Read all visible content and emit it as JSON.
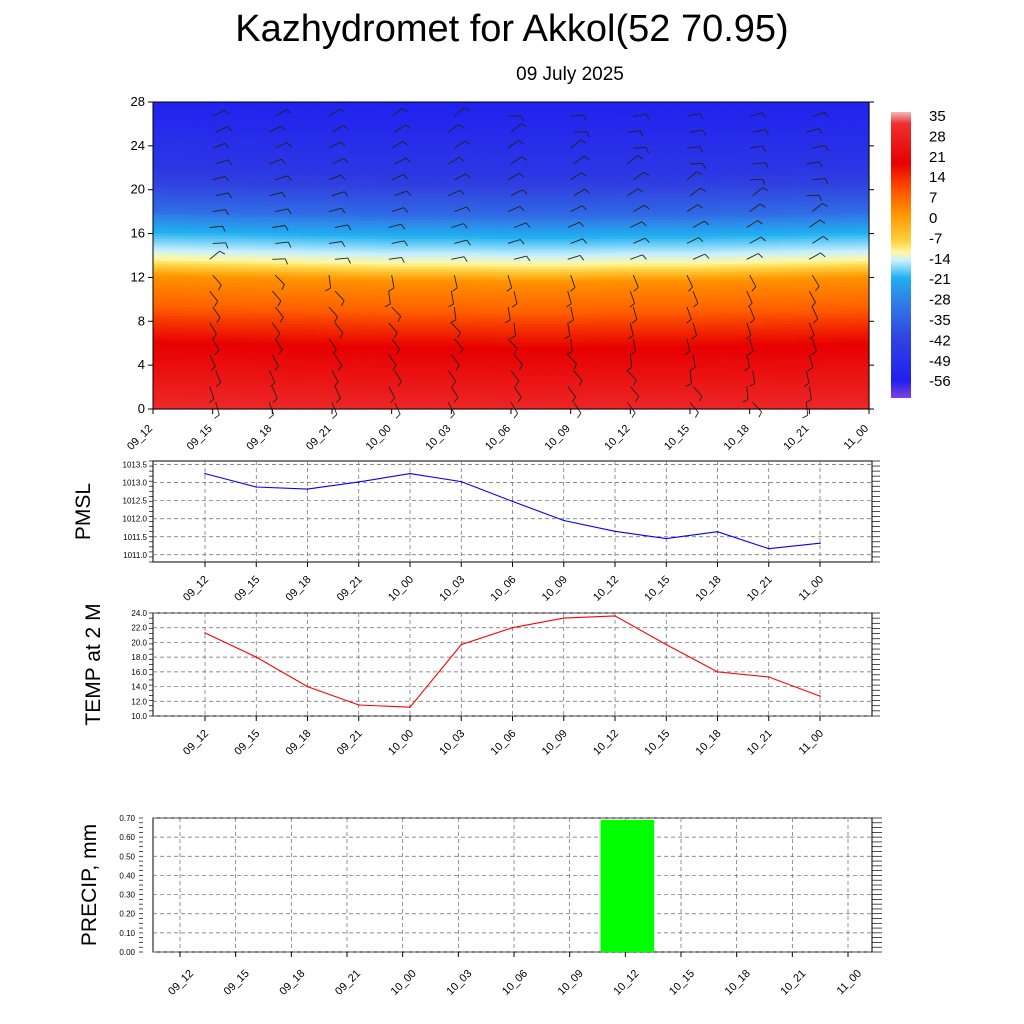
{
  "title": "Kazhydromet for Akkol(52 70.95)",
  "subtitle": "09 July 2025",
  "time_labels": [
    "09_12",
    "09_15",
    "09_18",
    "09_21",
    "10_00",
    "10_03",
    "10_06",
    "10_09",
    "10_12",
    "10_15",
    "10_18",
    "10_21",
    "11_00"
  ],
  "chart_data": [
    {
      "type": "heatmap",
      "title": "",
      "xlabel": "",
      "ylabel": "",
      "x": [
        "09_12",
        "09_15",
        "09_18",
        "09_21",
        "10_00",
        "10_03",
        "10_06",
        "10_09",
        "10_12",
        "10_15",
        "10_18",
        "10_21",
        "11_00"
      ],
      "y_ticks": [
        0,
        4,
        8,
        12,
        16,
        20,
        24,
        28
      ],
      "ylim": [
        0,
        28
      ],
      "colorbar_levels": [
        35,
        28,
        21,
        14,
        7,
        0,
        -7,
        -14,
        -21,
        -28,
        -35,
        -42,
        -49,
        -56
      ],
      "colorbar_range": [
        -60,
        38
      ],
      "freezing_level": [
        13.0,
        12.9,
        12.8,
        12.7,
        12.6,
        12.6,
        12.5,
        12.5,
        12.6,
        12.6,
        12.7,
        12.8,
        12.9
      ],
      "temperature_profile": [
        {
          "level": 0,
          "temp": 26
        },
        {
          "level": 4,
          "temp": 18
        },
        {
          "level": 8,
          "temp": 10
        },
        {
          "level": 12,
          "temp": 1
        },
        {
          "level": 14,
          "temp": -12
        },
        {
          "level": 16,
          "temp": -24
        },
        {
          "level": 18,
          "temp": -38
        },
        {
          "level": 22,
          "temp": -48
        },
        {
          "level": 28,
          "temp": -55
        }
      ],
      "wind_barbs": "wind barbs at each time step and height level"
    },
    {
      "type": "line",
      "ylabel": "PMSL",
      "x": [
        "09_12",
        "09_15",
        "09_18",
        "09_21",
        "10_00",
        "10_03",
        "10_06",
        "10_09",
        "10_12",
        "10_15",
        "10_18",
        "10_21",
        "11_00"
      ],
      "series": [
        {
          "values": [
            1013.25,
            1012.88,
            1012.82,
            1013.02,
            1013.25,
            1013.03,
            1012.48,
            1011.95,
            1011.65,
            1011.45,
            1011.64,
            1011.17,
            1011.32
          ]
        }
      ],
      "ylim": [
        1010.8,
        1013.6
      ],
      "yticks": [
        "1011.0",
        "1011.5",
        "1012.0",
        "1012.5",
        "1013.0",
        "1013.5"
      ],
      "line_color": "#0000ff",
      "grid": true
    },
    {
      "type": "line",
      "ylabel": "TEMP at 2 M",
      "x": [
        "09_12",
        "09_15",
        "09_18",
        "09_21",
        "10_00",
        "10_03",
        "10_06",
        "10_09",
        "10_12",
        "10_15",
        "10_18",
        "10_21",
        "11_00"
      ],
      "series": [
        {
          "values": [
            21.3,
            18.0,
            14.0,
            11.5,
            11.2,
            19.7,
            22.0,
            23.3,
            23.6,
            19.7,
            16.0,
            15.3,
            12.7
          ]
        }
      ],
      "ylim": [
        10.0,
        24.0
      ],
      "yticks": [
        "10.0",
        "12.0",
        "14.0",
        "16.0",
        "18.0",
        "20.0",
        "22.0",
        "24.0"
      ],
      "line_color": "#ff0000",
      "grid": true
    },
    {
      "type": "bar",
      "ylabel": "PRECIP, mm",
      "categories": [
        "09_12",
        "09_15",
        "09_18",
        "09_21",
        "10_00",
        "10_03",
        "10_06",
        "10_09",
        "10_12",
        "10_15",
        "10_18",
        "10_21",
        "11_00"
      ],
      "values": [
        0,
        0,
        0,
        0,
        0,
        0,
        0,
        0,
        0.69,
        0,
        0,
        0,
        0
      ],
      "ylim": [
        0.0,
        0.7
      ],
      "yticks": [
        "0.00",
        "0.10",
        "0.20",
        "0.30",
        "0.40",
        "0.50",
        "0.60",
        "0.70"
      ],
      "bar_color": "#00ff00",
      "grid": true
    }
  ]
}
